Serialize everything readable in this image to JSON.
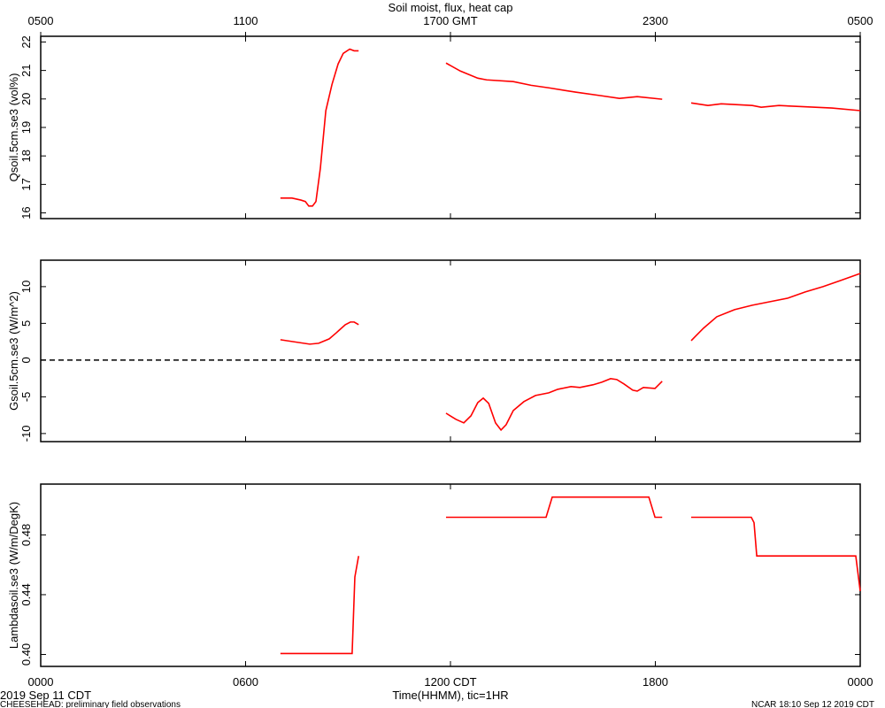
{
  "title": "Soil moist, flux, heat cap",
  "footer_date": "2019 Sep 11 CDT",
  "footer_source": "CHEESEHEAD: preliminary field observations",
  "footer_stamp": "NCAR 18:10 Sep 12 2019 CDT",
  "chart_data": [
    {
      "type": "line",
      "ylabel": "Qsoil.5cm.se3 (vol%)",
      "xlim": [
        0,
        24
      ],
      "xticks": [
        0,
        6,
        12,
        18,
        24
      ],
      "x2ticks": [
        {
          "value": 0,
          "label": "0500"
        },
        {
          "value": 6,
          "label": "1100"
        },
        {
          "value": 12,
          "label": "1700 GMT"
        },
        {
          "value": 18,
          "label": "2300"
        },
        {
          "value": 24,
          "label": "0500"
        }
      ],
      "ylim": [
        15.8,
        22.2
      ],
      "yticks": [
        16,
        17,
        18,
        19,
        20,
        21,
        22
      ],
      "x": [
        7.02,
        7.36,
        7.62,
        7.75,
        7.85,
        7.96,
        8.06,
        8.19,
        8.35,
        8.53,
        8.71,
        8.86,
        9.05,
        9.18,
        9.31,
        10,
        11.87,
        12.29,
        12.8,
        13.06,
        13.84,
        14.36,
        14.88,
        15.66,
        16.43,
        16.95,
        17.47,
        18.2,
        18.6,
        19.05,
        19.54,
        19.93,
        20.84,
        21.1,
        21.62,
        22.14,
        23.17,
        24
      ],
      "series": [
        {
          "color": "#ff0000",
          "values": [
            16.52,
            16.52,
            16.45,
            16.4,
            16.24,
            16.24,
            16.4,
            17.57,
            19.59,
            20.51,
            21.23,
            21.6,
            21.75,
            21.69,
            21.69,
            null,
            21.26,
            20.98,
            20.73,
            20.67,
            20.61,
            20.48,
            20.39,
            20.24,
            20.11,
            20.02,
            20.08,
            19.99,
            null,
            19.86,
            19.77,
            19.83,
            19.77,
            19.71,
            19.77,
            19.74,
            19.68,
            19.59
          ]
        }
      ]
    },
    {
      "type": "line",
      "ylabel": "Gsoil.5cm.se3 (W/m^2)",
      "xlim": [
        0,
        24
      ],
      "xticks": [
        0,
        6,
        12,
        18,
        24
      ],
      "ylim": [
        -11.1,
        13.6
      ],
      "yticks": [
        -10,
        -5,
        0,
        5,
        10
      ],
      "reference_line": 0,
      "x": [
        7.02,
        7.36,
        7.88,
        8.14,
        8.45,
        8.66,
        8.92,
        9.07,
        9.18,
        9.31,
        10,
        11.87,
        12.16,
        12.39,
        12.6,
        12.8,
        12.96,
        13.12,
        13.32,
        13.48,
        13.63,
        13.84,
        14.15,
        14.49,
        14.88,
        15.14,
        15.53,
        15.79,
        16.17,
        16.43,
        16.69,
        16.87,
        17.08,
        17.34,
        17.47,
        17.65,
        17.99,
        18.2,
        18.6,
        19.05,
        19.41,
        19.8,
        20.32,
        20.84,
        21.36,
        21.88,
        22.39,
        22.91,
        23.43,
        24
      ],
      "series": [
        {
          "color": "#ff0000",
          "values": [
            2.77,
            2.53,
            2.17,
            2.29,
            2.89,
            3.73,
            4.82,
            5.18,
            5.18,
            4.82,
            null,
            -7.23,
            -8.07,
            -8.55,
            -7.59,
            -5.78,
            -5.18,
            -5.9,
            -8.55,
            -9.52,
            -8.8,
            -6.87,
            -5.66,
            -4.82,
            -4.46,
            -3.98,
            -3.61,
            -3.73,
            -3.37,
            -3.01,
            -2.53,
            -2.65,
            -3.25,
            -4.1,
            -4.22,
            -3.73,
            -3.86,
            -2.89,
            null,
            2.65,
            4.34,
            5.9,
            6.87,
            7.47,
            7.95,
            8.43,
            9.28,
            10.0,
            10.84,
            11.8
          ]
        }
      ]
    },
    {
      "type": "line",
      "ylabel": "Lambdasoil.se3 (W/m/DegK)",
      "xlabel": "Time(HHMM), tic=1HR",
      "xlim": [
        0,
        24
      ],
      "xticks": [
        {
          "value": 0,
          "label": "0000"
        },
        {
          "value": 6,
          "label": "0600"
        },
        {
          "value": 12,
          "label": "1200 CDT"
        },
        {
          "value": 18,
          "label": "1800"
        },
        {
          "value": 24,
          "label": "0000"
        }
      ],
      "ylim": [
        0.392,
        0.514
      ],
      "yticks": [
        {
          "value": 0.4,
          "label": "0.40"
        },
        {
          "value": 0.44,
          "label": "0.44"
        },
        {
          "value": 0.48,
          "label": "0.48"
        }
      ],
      "x": [
        7.02,
        9.12,
        9.2,
        9.31,
        10,
        11.87,
        14.8,
        14.98,
        17.81,
        17.99,
        18.2,
        18.6,
        19.05,
        20.81,
        20.89,
        20.97,
        23.87,
        24
      ],
      "series": [
        {
          "color": "#ff0000",
          "values": [
            0.4006,
            0.4006,
            0.4518,
            0.4659,
            null,
            0.4918,
            0.4918,
            0.5053,
            0.5053,
            0.4918,
            0.4918,
            null,
            0.4918,
            0.4918,
            0.4882,
            0.4659,
            0.4659,
            0.4424
          ]
        }
      ]
    }
  ]
}
